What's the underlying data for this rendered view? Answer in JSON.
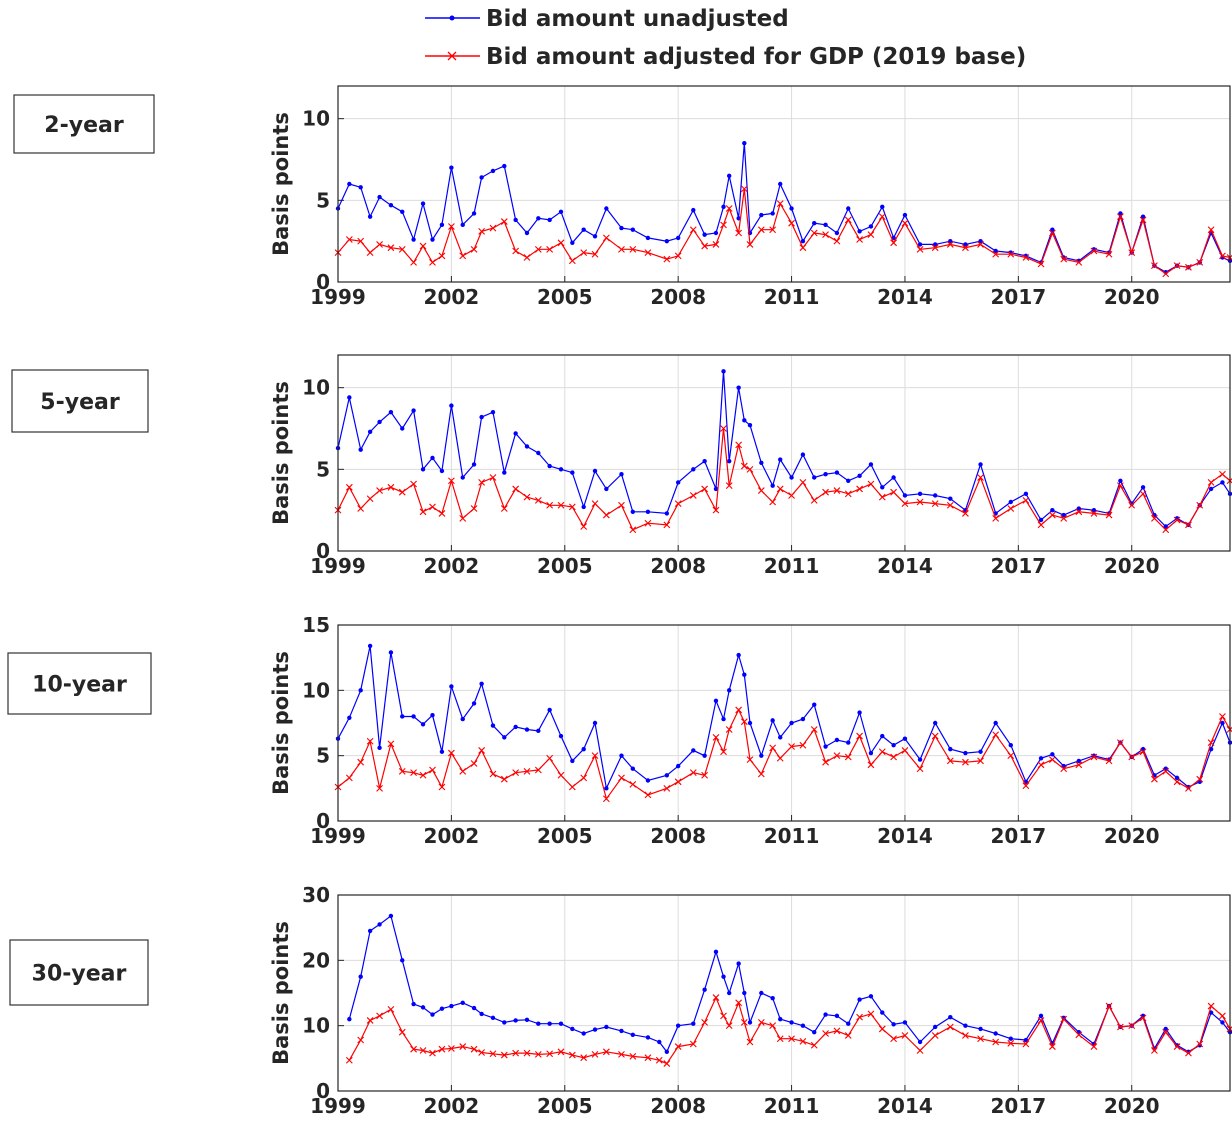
{
  "chart_data": [
    {
      "type": "line",
      "title": "2-year",
      "ylabel": "Basis points",
      "x": [
        1999.0,
        1999.3,
        1999.6,
        1999.85,
        2000.1,
        2000.4,
        2000.7,
        2001.0,
        2001.25,
        2001.5,
        2001.75,
        2002.0,
        2002.3,
        2002.6,
        2002.8,
        2003.1,
        2003.4,
        2003.7,
        2004.0,
        2004.3,
        2004.6,
        2004.9,
        2005.2,
        2005.5,
        2005.8,
        2006.1,
        2006.5,
        2006.8,
        2007.2,
        2007.7,
        2008.0,
        2008.4,
        2008.7,
        2009.0,
        2009.2,
        2009.35,
        2009.6,
        2009.75,
        2009.9,
        2010.2,
        2010.5,
        2010.7,
        2011.0,
        2011.3,
        2011.6,
        2011.9,
        2012.2,
        2012.5,
        2012.8,
        2013.1,
        2013.4,
        2013.7,
        2014.0,
        2014.4,
        2014.8,
        2015.2,
        2015.6,
        2016.0,
        2016.4,
        2016.8,
        2017.2,
        2017.6,
        2017.9,
        2018.2,
        2018.6,
        2019.0,
        2019.4,
        2019.7,
        2020.0,
        2020.3,
        2020.6,
        2020.9,
        2021.2,
        2021.5,
        2021.8,
        2022.1,
        2022.4,
        2022.6
      ],
      "series": [
        {
          "name": "Bid amount unadjusted",
          "color": "#0000ff",
          "marker": "dot",
          "values": [
            4.5,
            6.0,
            5.8,
            4.0,
            5.2,
            4.7,
            4.3,
            2.6,
            4.8,
            2.6,
            3.5,
            7.0,
            3.5,
            4.2,
            6.4,
            6.8,
            7.1,
            3.8,
            3.0,
            3.9,
            3.8,
            4.3,
            2.4,
            3.2,
            2.8,
            4.5,
            3.3,
            3.2,
            2.7,
            2.5,
            2.7,
            4.4,
            2.9,
            3.0,
            4.6,
            6.5,
            3.9,
            8.5,
            3.0,
            4.1,
            4.2,
            6.0,
            4.5,
            2.5,
            3.6,
            3.5,
            3.0,
            4.5,
            3.1,
            3.4,
            4.6,
            2.7,
            4.1,
            2.3,
            2.3,
            2.5,
            2.3,
            2.5,
            1.9,
            1.8,
            1.6,
            1.2,
            3.2,
            1.5,
            1.3,
            2.0,
            1.8,
            4.2,
            1.8,
            4.0,
            1.0,
            0.6,
            1.0,
            0.9,
            1.2,
            3.0,
            1.5,
            1.3
          ]
        },
        {
          "name": "Bid amount adjusted for GDP (2019 base)",
          "color": "#ff0000",
          "marker": "x",
          "values": [
            1.8,
            2.6,
            2.5,
            1.8,
            2.3,
            2.1,
            2.0,
            1.2,
            2.2,
            1.2,
            1.6,
            3.4,
            1.6,
            2.0,
            3.1,
            3.3,
            3.7,
            1.9,
            1.5,
            2.0,
            2.0,
            2.4,
            1.3,
            1.8,
            1.7,
            2.7,
            2.0,
            2.0,
            1.8,
            1.4,
            1.6,
            3.2,
            2.2,
            2.3,
            3.5,
            4.5,
            3.0,
            5.7,
            2.3,
            3.2,
            3.2,
            4.8,
            3.6,
            2.1,
            3.0,
            2.9,
            2.5,
            3.8,
            2.6,
            2.9,
            4.0,
            2.4,
            3.6,
            2.0,
            2.1,
            2.3,
            2.1,
            2.3,
            1.7,
            1.7,
            1.5,
            1.1,
            3.0,
            1.4,
            1.2,
            1.9,
            1.7,
            4.0,
            1.8,
            3.8,
            1.0,
            0.5,
            1.0,
            0.9,
            1.2,
            3.2,
            1.6,
            1.5
          ]
        }
      ],
      "xlim": [
        1999,
        2022.6
      ],
      "xticks": [
        1999,
        2002,
        2005,
        2008,
        2011,
        2014,
        2017,
        2020
      ],
      "ylim": [
        0,
        12
      ],
      "yticks": [
        0,
        5,
        10
      ],
      "grid": true
    },
    {
      "type": "line",
      "title": "5-year",
      "ylabel": "Basis points",
      "x": [
        1999.0,
        1999.3,
        1999.6,
        1999.85,
        2000.1,
        2000.4,
        2000.7,
        2001.0,
        2001.25,
        2001.5,
        2001.75,
        2002.0,
        2002.3,
        2002.6,
        2002.8,
        2003.1,
        2003.4,
        2003.7,
        2004.0,
        2004.3,
        2004.6,
        2004.9,
        2005.2,
        2005.5,
        2005.8,
        2006.1,
        2006.5,
        2006.8,
        2007.2,
        2007.7,
        2008.0,
        2008.4,
        2008.7,
        2009.0,
        2009.2,
        2009.35,
        2009.6,
        2009.75,
        2009.9,
        2010.2,
        2010.5,
        2010.7,
        2011.0,
        2011.3,
        2011.6,
        2011.9,
        2012.2,
        2012.5,
        2012.8,
        2013.1,
        2013.4,
        2013.7,
        2014.0,
        2014.4,
        2014.8,
        2015.2,
        2015.6,
        2016.0,
        2016.4,
        2016.8,
        2017.2,
        2017.6,
        2017.9,
        2018.2,
        2018.6,
        2019.0,
        2019.4,
        2019.7,
        2020.0,
        2020.3,
        2020.6,
        2020.9,
        2021.2,
        2021.5,
        2021.8,
        2022.1,
        2022.4,
        2022.6
      ],
      "series": [
        {
          "color": "#0000ff",
          "marker": "dot",
          "values": [
            6.3,
            9.4,
            6.2,
            7.3,
            7.9,
            8.5,
            7.5,
            8.6,
            5.0,
            5.7,
            4.9,
            8.9,
            4.5,
            5.3,
            8.2,
            8.5,
            4.8,
            7.2,
            6.4,
            6.0,
            5.2,
            5.0,
            4.8,
            2.7,
            4.9,
            3.8,
            4.7,
            2.4,
            2.4,
            2.3,
            4.2,
            5.0,
            5.5,
            3.8,
            11.0,
            5.5,
            10.0,
            8.0,
            7.7,
            5.4,
            4.0,
            5.6,
            4.5,
            5.9,
            4.5,
            4.7,
            4.8,
            4.3,
            4.6,
            5.3,
            3.9,
            4.5,
            3.4,
            3.5,
            3.4,
            3.2,
            2.5,
            5.3,
            2.3,
            3.0,
            3.5,
            1.9,
            2.5,
            2.2,
            2.6,
            2.5,
            2.3,
            4.3,
            2.9,
            3.9,
            2.2,
            1.5,
            2.0,
            1.6,
            2.8,
            3.8,
            4.2,
            3.5
          ]
        },
        {
          "color": "#ff0000",
          "marker": "x",
          "values": [
            2.5,
            3.9,
            2.6,
            3.2,
            3.7,
            3.9,
            3.6,
            4.1,
            2.4,
            2.7,
            2.3,
            4.3,
            2.0,
            2.6,
            4.2,
            4.5,
            2.6,
            3.8,
            3.3,
            3.1,
            2.8,
            2.8,
            2.7,
            1.5,
            2.9,
            2.2,
            2.8,
            1.3,
            1.7,
            1.6,
            2.9,
            3.4,
            3.8,
            2.5,
            7.5,
            4.0,
            6.5,
            5.2,
            5.0,
            3.7,
            3.0,
            3.8,
            3.4,
            4.2,
            3.1,
            3.6,
            3.7,
            3.5,
            3.8,
            4.1,
            3.3,
            3.6,
            2.9,
            3.0,
            2.9,
            2.8,
            2.3,
            4.5,
            2.0,
            2.6,
            3.1,
            1.6,
            2.2,
            2.0,
            2.4,
            2.3,
            2.2,
            4.0,
            2.8,
            3.5,
            2.0,
            1.3,
            1.9,
            1.6,
            2.8,
            4.2,
            4.7,
            4.3
          ]
        }
      ],
      "xlim": [
        1999,
        2022.6
      ],
      "xticks": [
        1999,
        2002,
        2005,
        2008,
        2011,
        2014,
        2017,
        2020
      ],
      "ylim": [
        0,
        12
      ],
      "yticks": [
        0,
        5,
        10
      ],
      "grid": true
    },
    {
      "type": "line",
      "title": "10-year",
      "ylabel": "Basis points",
      "x": [
        1999.0,
        1999.3,
        1999.6,
        1999.85,
        2000.1,
        2000.4,
        2000.7,
        2001.0,
        2001.25,
        2001.5,
        2001.75,
        2002.0,
        2002.3,
        2002.6,
        2002.8,
        2003.1,
        2003.4,
        2003.7,
        2004.0,
        2004.3,
        2004.6,
        2004.9,
        2005.2,
        2005.5,
        2005.8,
        2006.1,
        2006.5,
        2006.8,
        2007.2,
        2007.7,
        2008.0,
        2008.4,
        2008.7,
        2009.0,
        2009.2,
        2009.35,
        2009.6,
        2009.75,
        2009.9,
        2010.2,
        2010.5,
        2010.7,
        2011.0,
        2011.3,
        2011.6,
        2011.9,
        2012.2,
        2012.5,
        2012.8,
        2013.1,
        2013.4,
        2013.7,
        2014.0,
        2014.4,
        2014.8,
        2015.2,
        2015.6,
        2016.0,
        2016.4,
        2016.8,
        2017.2,
        2017.6,
        2017.9,
        2018.2,
        2018.6,
        2019.0,
        2019.4,
        2019.7,
        2020.0,
        2020.3,
        2020.6,
        2020.9,
        2021.2,
        2021.5,
        2021.8,
        2022.1,
        2022.4,
        2022.6
      ],
      "series": [
        {
          "color": "#0000ff",
          "marker": "dot",
          "values": [
            6.3,
            7.9,
            10.0,
            13.4,
            5.6,
            12.9,
            8.0,
            8.0,
            7.4,
            8.1,
            5.3,
            10.3,
            7.8,
            9.0,
            10.5,
            7.3,
            6.4,
            7.2,
            7.0,
            6.9,
            8.5,
            6.5,
            4.6,
            5.5,
            7.5,
            2.5,
            5.0,
            4.0,
            3.1,
            3.5,
            4.2,
            5.4,
            5.0,
            9.2,
            7.8,
            10.0,
            12.7,
            11.2,
            7.5,
            5.0,
            7.7,
            6.4,
            7.5,
            7.8,
            8.9,
            5.7,
            6.2,
            6.0,
            8.3,
            5.2,
            6.5,
            5.8,
            6.3,
            4.7,
            7.5,
            5.5,
            5.2,
            5.3,
            7.5,
            5.8,
            3.0,
            4.8,
            5.1,
            4.2,
            4.6,
            5.0,
            4.7,
            6.0,
            4.9,
            5.5,
            3.5,
            4.0,
            3.3,
            2.6,
            3.0,
            5.5,
            7.5,
            6.0
          ]
        },
        {
          "color": "#ff0000",
          "marker": "x",
          "values": [
            2.6,
            3.3,
            4.5,
            6.1,
            2.5,
            5.9,
            3.8,
            3.7,
            3.5,
            3.9,
            2.6,
            5.2,
            3.8,
            4.4,
            5.4,
            3.6,
            3.2,
            3.7,
            3.8,
            3.9,
            4.8,
            3.5,
            2.6,
            3.3,
            5.0,
            1.7,
            3.3,
            2.8,
            2.0,
            2.5,
            3.0,
            3.7,
            3.5,
            6.4,
            5.3,
            7.0,
            8.5,
            7.6,
            4.7,
            3.6,
            5.6,
            4.8,
            5.7,
            5.8,
            7.0,
            4.5,
            5.0,
            4.9,
            6.5,
            4.3,
            5.3,
            4.9,
            5.4,
            4.0,
            6.5,
            4.6,
            4.5,
            4.6,
            6.6,
            5.0,
            2.7,
            4.3,
            4.7,
            4.0,
            4.3,
            4.9,
            4.6,
            6.0,
            4.9,
            5.3,
            3.2,
            3.8,
            3.0,
            2.5,
            3.2,
            6.0,
            8.0,
            7.0
          ]
        }
      ],
      "xlim": [
        1999,
        2022.6
      ],
      "xticks": [
        1999,
        2002,
        2005,
        2008,
        2011,
        2014,
        2017,
        2020
      ],
      "ylim": [
        0,
        15
      ],
      "yticks": [
        0,
        5,
        10,
        15
      ],
      "grid": true
    },
    {
      "type": "line",
      "title": "30-year",
      "ylabel": "Basis points",
      "x": [
        1999.3,
        1999.6,
        1999.85,
        2000.1,
        2000.4,
        2000.7,
        2001.0,
        2001.25,
        2001.5,
        2001.75,
        2002.0,
        2002.3,
        2002.6,
        2002.8,
        2003.1,
        2003.4,
        2003.7,
        2004.0,
        2004.3,
        2004.6,
        2004.9,
        2005.2,
        2005.5,
        2005.8,
        2006.1,
        2006.5,
        2006.8,
        2007.2,
        2007.5,
        2007.7,
        2008.0,
        2008.4,
        2008.7,
        2009.0,
        2009.2,
        2009.35,
        2009.6,
        2009.75,
        2009.9,
        2010.2,
        2010.5,
        2010.7,
        2011.0,
        2011.3,
        2011.6,
        2011.9,
        2012.2,
        2012.5,
        2012.8,
        2013.1,
        2013.4,
        2013.7,
        2014.0,
        2014.4,
        2014.8,
        2015.2,
        2015.6,
        2016.0,
        2016.4,
        2016.8,
        2017.2,
        2017.6,
        2017.9,
        2018.2,
        2018.6,
        2019.0,
        2019.4,
        2019.7,
        2020.0,
        2020.3,
        2020.6,
        2020.9,
        2021.2,
        2021.5,
        2021.8,
        2022.1,
        2022.4,
        2022.6
      ],
      "series": [
        {
          "color": "#0000ff",
          "marker": "dot",
          "values": [
            11.0,
            17.5,
            24.5,
            25.5,
            26.8,
            20.0,
            13.3,
            12.8,
            11.7,
            12.6,
            13.0,
            13.5,
            12.7,
            11.8,
            11.2,
            10.5,
            10.8,
            10.9,
            10.3,
            10.3,
            10.3,
            9.5,
            8.8,
            9.4,
            9.8,
            9.2,
            8.6,
            8.2,
            7.5,
            6.0,
            10.0,
            10.3,
            15.5,
            21.3,
            17.5,
            15.0,
            19.5,
            15.0,
            10.5,
            15.0,
            14.2,
            11.0,
            10.5,
            10.0,
            9.0,
            11.7,
            11.5,
            10.3,
            14.0,
            14.5,
            12.0,
            10.2,
            10.5,
            7.5,
            9.8,
            11.3,
            10.0,
            9.5,
            8.8,
            8.0,
            7.8,
            11.5,
            7.3,
            11.2,
            9.0,
            7.2,
            13.0,
            9.8,
            10.0,
            11.5,
            6.5,
            9.5,
            7.0,
            6.0,
            7.0,
            12.0,
            10.5,
            9.0
          ]
        },
        {
          "color": "#ff0000",
          "marker": "x",
          "values": [
            4.7,
            7.8,
            10.8,
            11.5,
            12.5,
            9.0,
            6.4,
            6.2,
            5.8,
            6.4,
            6.5,
            6.8,
            6.4,
            5.9,
            5.7,
            5.5,
            5.8,
            5.8,
            5.6,
            5.7,
            6.0,
            5.5,
            5.1,
            5.6,
            6.0,
            5.6,
            5.3,
            5.1,
            4.7,
            4.2,
            6.8,
            7.2,
            10.5,
            14.3,
            11.5,
            10.0,
            13.5,
            10.5,
            7.5,
            10.5,
            10.0,
            8.0,
            8.0,
            7.6,
            7.0,
            8.8,
            9.2,
            8.5,
            11.3,
            11.8,
            9.5,
            8.0,
            8.5,
            6.2,
            8.5,
            9.8,
            8.5,
            8.0,
            7.5,
            7.3,
            7.2,
            10.8,
            6.8,
            11.0,
            8.6,
            6.8,
            13.0,
            9.8,
            10.0,
            11.2,
            6.2,
            9.0,
            6.8,
            5.8,
            7.2,
            13.0,
            11.5,
            9.5
          ]
        }
      ],
      "xlim": [
        1999,
        2022.6
      ],
      "xticks": [
        1999,
        2002,
        2005,
        2008,
        2011,
        2014,
        2017,
        2020
      ],
      "ylim": [
        0,
        30
      ],
      "yticks": [
        0,
        10,
        20,
        30
      ],
      "grid": true
    }
  ]
}
